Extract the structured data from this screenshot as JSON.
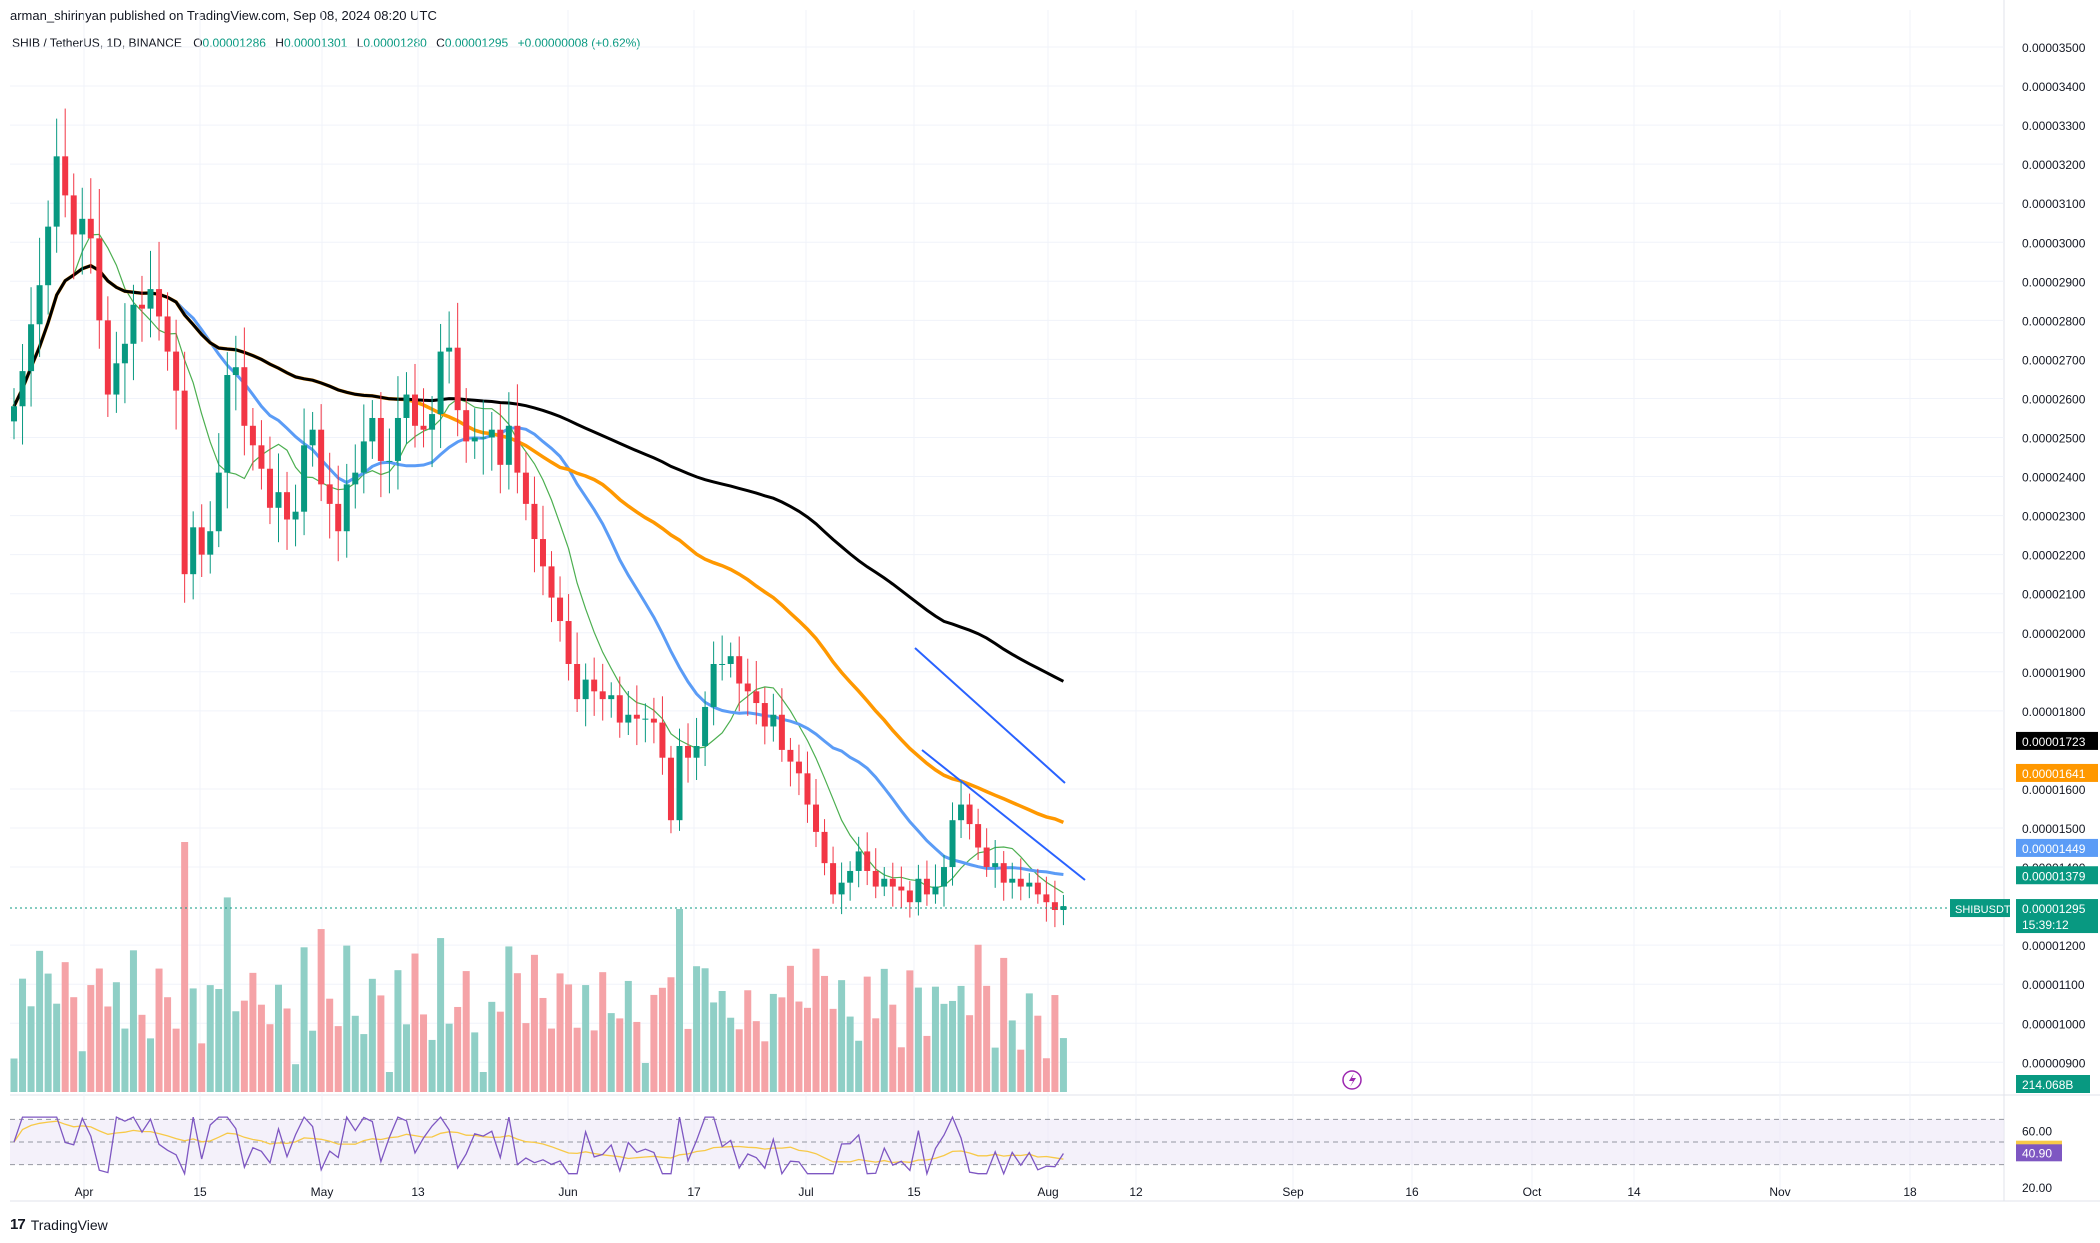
{
  "header": {
    "publisher": "arman_shirinyan published on TradingView.com, Sep 08, 2024 08:20 UTC"
  },
  "legend": {
    "symbol": "SHIB / TetherUS, 1D, BINANCE",
    "open_label": "O",
    "open": "0.00001286",
    "high_label": "H",
    "high": "0.00001301",
    "low_label": "L",
    "low": "0.00001280",
    "close_label": "C",
    "close": "0.00001295",
    "change": "+0.00000008 (+0.62%)"
  },
  "footer": {
    "logo_text": "TradingView"
  },
  "colors": {
    "up": "#089981",
    "down": "#f23645",
    "vol_up": "#8fcfc6",
    "vol_down": "#f5a3a7",
    "ma_blue": "#5b9cf6",
    "ma_orange": "#ff9800",
    "ma_black": "#000000",
    "ma_green": "#4caf50",
    "rsi": "#7e57c2",
    "rsi_ma": "#f7c948",
    "trend": "#2962ff"
  },
  "chart_data": {
    "type": "candlestick",
    "symbol": "SHIB/USDT",
    "y_ticks": [
      "0.00003500",
      "0.00003400",
      "0.00003300",
      "0.00003200",
      "0.00003100",
      "0.00003000",
      "0.00002900",
      "0.00002800",
      "0.00002700",
      "0.00002600",
      "0.00002500",
      "0.00002400",
      "0.00002300",
      "0.00002200",
      "0.00002100",
      "0.00002000",
      "0.00001900",
      "0.00001800",
      "0.00001600",
      "0.00001500",
      "0.00001400",
      "0.00001200",
      "0.00001100",
      "0.00001000",
      "0.00000900"
    ],
    "ylim": [
      8.3e-06,
      3.57e-05
    ],
    "x_ticks": [
      "Apr",
      "15",
      "May",
      "13",
      "Jun",
      "17",
      "Jul",
      "15",
      "Aug",
      "12",
      "Sep",
      "16",
      "Oct",
      "14",
      "Nov",
      "18"
    ],
    "price_badges": [
      {
        "value": "0.00001723",
        "color": "#000000"
      },
      {
        "value": "0.00001641",
        "color": "#ff9800"
      },
      {
        "value": "0.00001449",
        "color": "#5b9cf6"
      },
      {
        "value": "0.00001379",
        "color": "#089981"
      }
    ],
    "current": {
      "symbol": "SHIBUSDT",
      "value": "0.00001295",
      "countdown": "15:39:12"
    },
    "volume_badge": "214.068B",
    "rsi": {
      "ticks": [
        "60.00",
        "20.00"
      ],
      "ma_value": "43.22",
      "value": "40.90"
    },
    "candle_points_uSHIB": [
      25.8,
      26.7,
      27.9,
      28.9,
      30.4,
      32.2,
      31.2,
      30.2,
      30.6,
      30.1,
      28.0,
      26.1,
      26.9,
      27.4,
      28.4,
      28.3,
      28.8,
      28.1,
      27.2,
      26.2,
      21.5,
      22.7,
      22.0,
      22.6,
      24.1,
      26.6,
      26.8,
      25.3,
      24.8,
      24.2,
      23.2,
      23.6,
      22.9,
      23.1,
      24.8,
      25.2,
      23.8,
      23.3,
      22.6,
      23.8,
      24.1,
      24.9,
      25.5,
      24.4,
      24.4,
      25.5,
      26.1,
      25.3,
      25.2,
      25.6,
      27.2,
      27.3,
      25.7,
      24.9,
      25.0,
      25.0,
      25.2,
      24.3,
      25.3,
      24.1,
      23.3,
      22.4,
      21.7,
      20.9,
      20.3,
      19.2,
      18.3,
      18.8,
      18.5,
      18.3,
      18.4,
      17.7,
      17.9,
      17.8,
      17.8,
      17.7,
      16.8,
      15.2,
      17.1,
      16.8,
      17.1,
      18.1,
      19.2,
      19.2,
      19.4,
      18.7,
      18.5,
      18.2,
      17.6,
      17.9,
      17.0,
      16.7,
      16.4,
      15.6,
      14.9,
      14.1,
      13.3,
      13.6,
      13.9,
      14.4,
      13.9,
      13.5,
      13.7,
      13.5,
      13.4,
      13.1,
      13.7,
      13.3,
      13.5,
      14.0,
      15.2,
      15.6,
      15.1,
      14.5,
      14.0,
      14.1,
      13.6,
      13.7,
      13.5,
      13.6,
      13.3,
      13.1,
      12.9,
      13.0
    ]
  }
}
